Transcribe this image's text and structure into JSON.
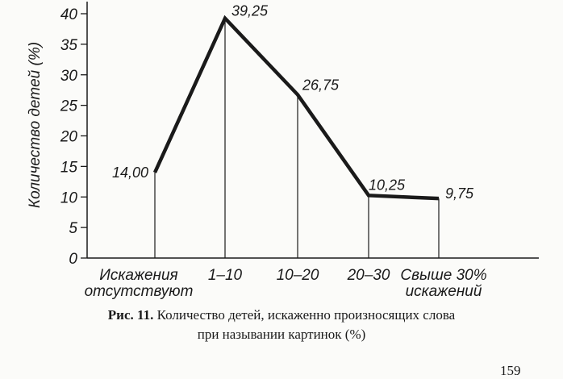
{
  "chart_data": {
    "type": "line",
    "ylabel": "Количество детей (%)",
    "ylim": [
      0,
      40
    ],
    "y_ticks": [
      0,
      5,
      10,
      15,
      20,
      25,
      30,
      35,
      40
    ],
    "categories": [
      [
        "Искажения",
        "отсутствуют"
      ],
      [
        "1–10"
      ],
      [
        "10–20"
      ],
      [
        "20–30"
      ],
      [
        "Свыше 30%",
        "искажений"
      ]
    ],
    "values": [
      14.0,
      39.25,
      26.75,
      10.25,
      9.75
    ],
    "data_labels": [
      "14,00",
      "39,25",
      "26,75",
      "10,25",
      "9,75"
    ],
    "drop_lines": true,
    "grid": false
  },
  "caption": {
    "fig_label": "Рис. 11.",
    "line1": "Количество детей, искаженно произносящих слова",
    "line2": "при назывании картинок (%)"
  },
  "page_number": "159"
}
